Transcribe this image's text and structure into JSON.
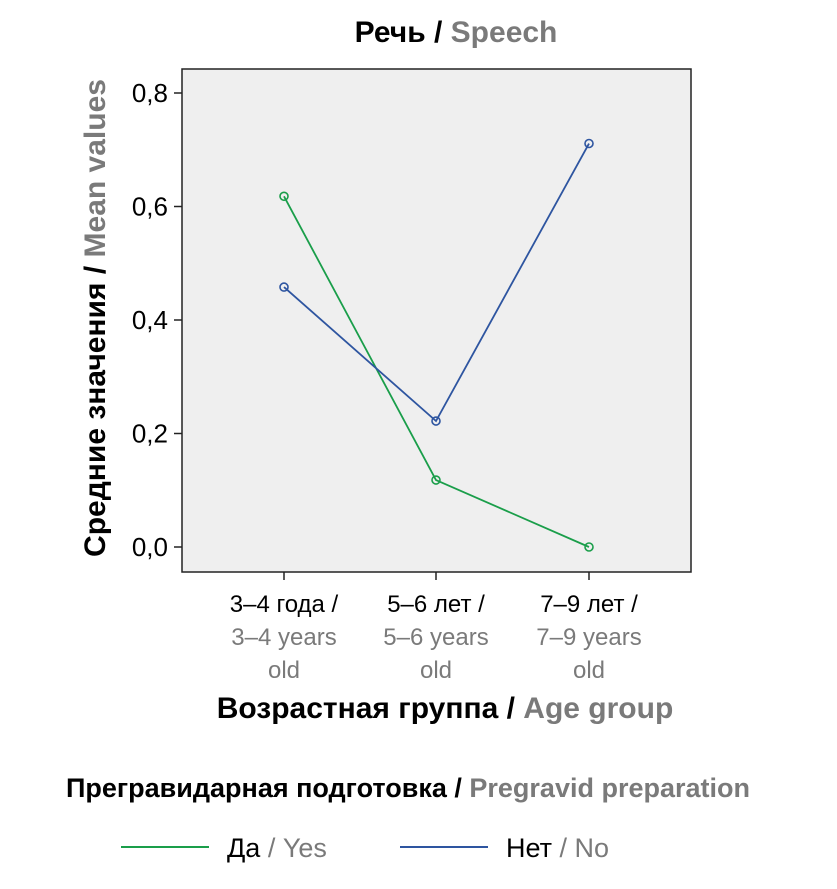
{
  "chart_data": {
    "type": "line",
    "title": {
      "ru": "Речь",
      "sep": " / ",
      "en": "Speech"
    },
    "xlabel": {
      "ru": "Возрастная группа",
      "sep": " / ",
      "en": "Age group"
    },
    "ylabel": {
      "ru": "Средние значения",
      "sep": " / ",
      "en": "Mean values"
    },
    "categories": [
      {
        "ru": "3–4 года /",
        "en1": "3–4 years",
        "en2": "old"
      },
      {
        "ru": "5–6 лет /",
        "en1": "5–6 years",
        "en2": "old"
      },
      {
        "ru": "7–9 лет /",
        "en1": "7–9 years",
        "en2": "old"
      }
    ],
    "ylim": [
      0,
      0.84
    ],
    "yticks": [
      0,
      0.2,
      0.4,
      0.6,
      0.8
    ],
    "ytick_labels": [
      "0,0",
      "0,2",
      "0,4",
      "0,6",
      "0,8"
    ],
    "grid": false,
    "legend": {
      "placement": "bottom",
      "title": {
        "ru": "Прегравидарная подготовка",
        "sep": " / ",
        "en": "Pregravid preparation"
      }
    },
    "series": [
      {
        "label_ru": "Да",
        "sep": " / ",
        "label_en": "Yes",
        "color": "#1a9e4a",
        "values": [
          0.618,
          0.118,
          0.0
        ]
      },
      {
        "label_ru": "Нет",
        "sep": " / ",
        "label_en": "No",
        "color": "#2e55a0",
        "values": [
          0.458,
          0.222,
          0.711
        ]
      }
    ]
  },
  "colors": {
    "plot_background": "#efefef",
    "secondary_text": "#7a7a7a"
  }
}
